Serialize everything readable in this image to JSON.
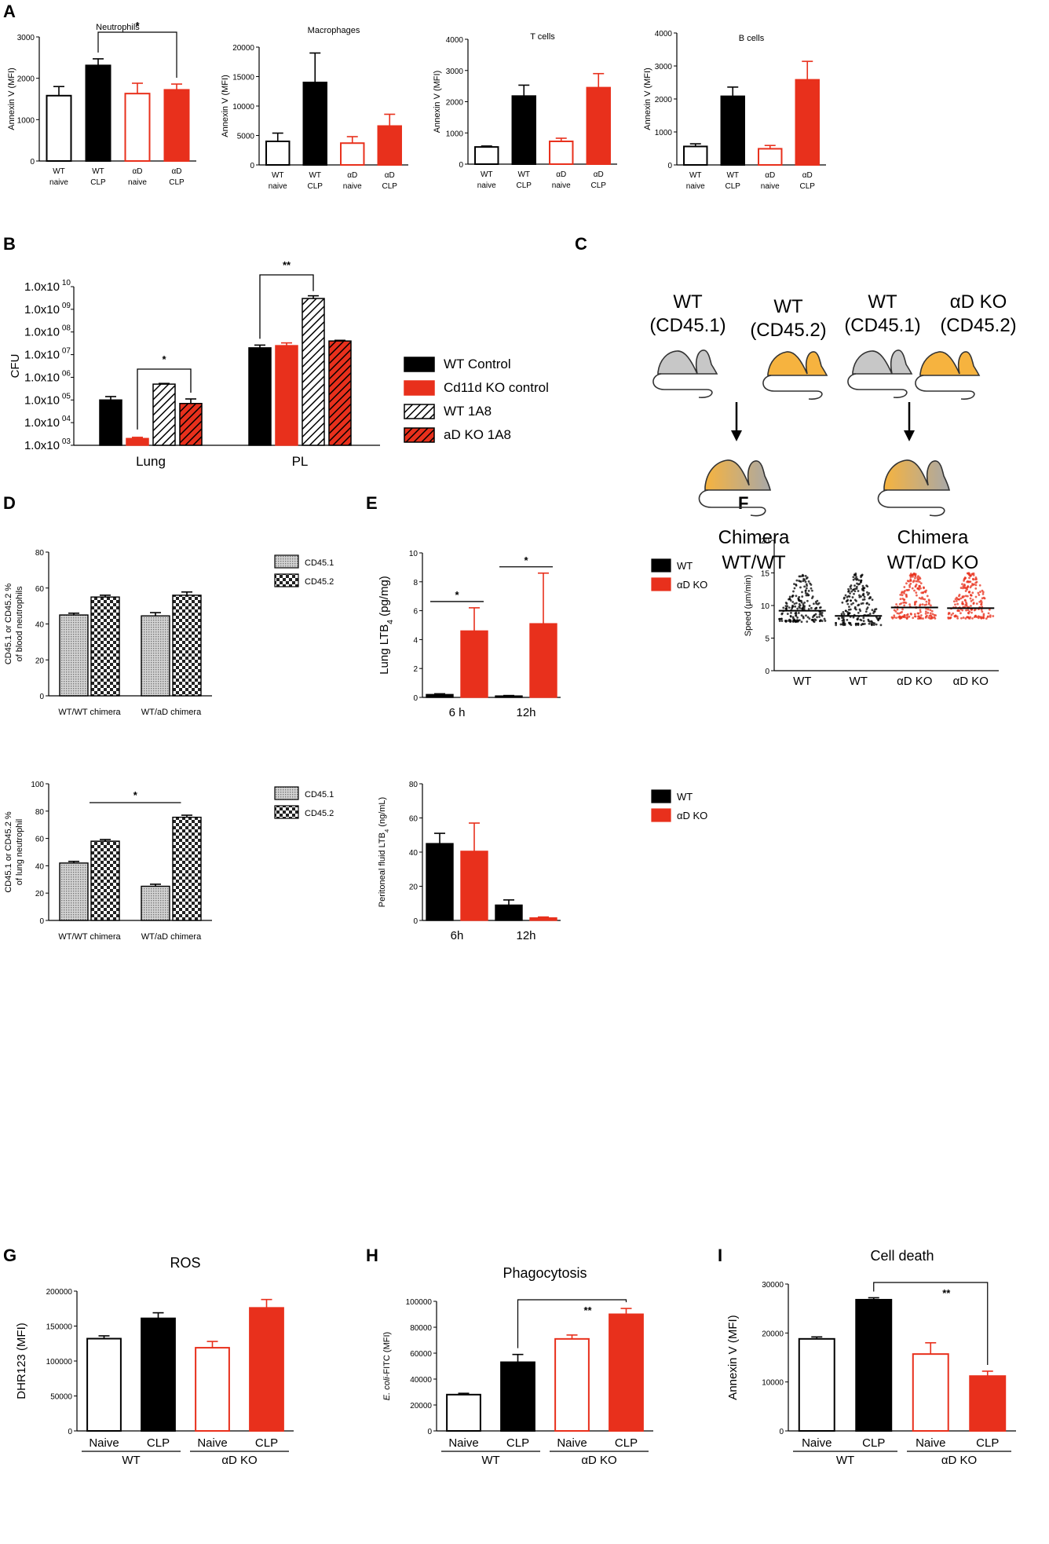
{
  "colors": {
    "black": "#000000",
    "red": "#e8301c",
    "gray": "#c7c7c7",
    "orange": "#f6b33f",
    "white": "#ffffff"
  },
  "chart_data": [
    {
      "id": "A1",
      "panel": "A",
      "type": "bar",
      "title": "Neutrophils",
      "ylabel": "Annexin V (MFI)",
      "ylim": [
        0,
        3000
      ],
      "yticks": [
        "0",
        "1000",
        "2000",
        "3000"
      ],
      "categories": [
        [
          "WT",
          "naive"
        ],
        [
          "WT",
          "CLP"
        ],
        [
          "αD",
          "naive"
        ],
        [
          "αD",
          "CLP"
        ]
      ],
      "values": [
        1580,
        2310,
        1630,
        1720
      ],
      "errors": [
        220,
        160,
        250,
        140
      ],
      "styles": [
        "open-black",
        "black",
        "open-red",
        "red"
      ],
      "annotations": [
        {
          "from": 1,
          "to": 3,
          "label": "*"
        }
      ]
    },
    {
      "id": "A2",
      "type": "bar",
      "title": "Macrophages",
      "ylabel": "Annexin V (MFI)",
      "ylim": [
        0,
        20000
      ],
      "yticks": [
        "0",
        "5000",
        "10000",
        "15000",
        "20000"
      ],
      "categories": [
        [
          "WT",
          "naive"
        ],
        [
          "WT",
          "CLP"
        ],
        [
          "αD",
          "naive"
        ],
        [
          "αD",
          "CLP"
        ]
      ],
      "values": [
        4000,
        14000,
        3700,
        6600
      ],
      "errors": [
        1400,
        5000,
        1100,
        2000
      ],
      "styles": [
        "open-black",
        "black",
        "open-red",
        "red"
      ]
    },
    {
      "id": "A3",
      "type": "bar",
      "title": "T cells",
      "ylabel": "Annexin V (MFI)",
      "ylim": [
        0,
        4000
      ],
      "yticks": [
        "0",
        "1000",
        "2000",
        "3000",
        "4000"
      ],
      "categories": [
        [
          "WT",
          "naive"
        ],
        [
          "WT",
          "CLP"
        ],
        [
          "αD",
          "naive"
        ],
        [
          "αD",
          "CLP"
        ]
      ],
      "values": [
        550,
        2180,
        730,
        2450
      ],
      "errors": [
        30,
        350,
        100,
        450
      ],
      "styles": [
        "open-black",
        "black",
        "open-red",
        "red"
      ]
    },
    {
      "id": "A4",
      "type": "bar",
      "title": "B cells",
      "ylabel": "Annexin V (MFI)",
      "ylim": [
        0,
        4000
      ],
      "yticks": [
        "0",
        "1000",
        "2000",
        "3000",
        "4000"
      ],
      "categories": [
        [
          "WT",
          "naive"
        ],
        [
          "WT",
          "CLP"
        ],
        [
          "αD",
          "naive"
        ],
        [
          "αD",
          "CLP"
        ]
      ],
      "values": [
        560,
        2080,
        490,
        2580
      ],
      "errors": [
        80,
        280,
        100,
        560
      ],
      "styles": [
        "open-black",
        "black",
        "open-red",
        "red"
      ]
    },
    {
      "id": "B",
      "panel": "B",
      "type": "bar",
      "scale": "log",
      "ylabel": "CFU",
      "ylim_exp": [
        3,
        10
      ],
      "yticks": [
        "1.0x10",
        "1.0x10",
        "1.0x10",
        "1.0x10",
        "1.0x10",
        "1.0x10",
        "1.0x10",
        "1.0x10"
      ],
      "ytick_exps": [
        "03",
        "04",
        "05",
        "06",
        "07",
        "08",
        "09",
        "10"
      ],
      "groups": [
        "Lung",
        "PL"
      ],
      "series": [
        {
          "name": "WT Control",
          "style": "black",
          "values": [
            100000,
            20000000
          ],
          "errors_log": [
            0.15,
            0.12
          ]
        },
        {
          "name": "Cd11d KO control",
          "style": "red",
          "values": [
            2000,
            25000000
          ],
          "errors_log": [
            0.05,
            0.12
          ]
        },
        {
          "name": "WT 1A8",
          "style": "hatch-white",
          "values": [
            500000,
            3000000000
          ],
          "errors_log": [
            0.03,
            0.12
          ]
        },
        {
          "name": "aD KO 1A8",
          "style": "hatch-red",
          "values": [
            70000,
            40000000
          ],
          "errors_log": [
            0.2,
            0.03
          ]
        }
      ],
      "annotations": [
        {
          "label": "*",
          "group": 0
        },
        {
          "label": "**",
          "group": 1
        }
      ]
    },
    {
      "id": "D1",
      "panel": "D",
      "type": "bar",
      "ylabel": "CD45.1 or CD45.2 %\nof blood neutrophils",
      "ylim": [
        0,
        80
      ],
      "yticks": [
        "0",
        "20",
        "40",
        "60",
        "80"
      ],
      "groups": [
        "WT/WT chimera",
        "WT/aD chimera"
      ],
      "series": [
        {
          "name": "CD45.1",
          "style": "dots",
          "values": [
            45,
            44.5
          ],
          "errors": [
            1,
            1.8
          ]
        },
        {
          "name": "CD45.2",
          "style": "checker",
          "values": [
            55,
            56
          ],
          "errors": [
            1,
            1.8
          ]
        }
      ]
    },
    {
      "id": "D2",
      "type": "bar",
      "ylabel": "CD45.1 or CD45.2 %\nof lung neutrophil",
      "ylim": [
        0,
        100
      ],
      "yticks": [
        "0",
        "20",
        "40",
        "60",
        "80",
        "100"
      ],
      "groups": [
        "WT/WT chimera",
        "WT/aD chimera"
      ],
      "series": [
        {
          "name": "CD45.1",
          "style": "dots",
          "values": [
            42,
            25
          ],
          "errors": [
            1.2,
            1.5
          ]
        },
        {
          "name": "CD45.2",
          "style": "checker",
          "values": [
            58,
            75.5
          ],
          "errors": [
            1.2,
            1.5
          ]
        }
      ],
      "annotations": [
        {
          "label": "*"
        }
      ]
    },
    {
      "id": "E1",
      "panel": "E",
      "type": "bar",
      "ylabel": "Lung LTB4 (pg/mg)",
      "ylabel_main": "Lung LTB",
      "ylabel_sub": "4",
      "ylabel_unit": " (pg/mg)",
      "ylim": [
        0,
        10
      ],
      "yticks": [
        "0",
        "2",
        "4",
        "6",
        "8",
        "10"
      ],
      "groups": [
        "6 h",
        "12h"
      ],
      "series": [
        {
          "name": "WT",
          "style": "black",
          "values": [
            0.2,
            0.1
          ],
          "errors": [
            0.05,
            0.03
          ]
        },
        {
          "name": "αD KO",
          "style": "red",
          "values": [
            4.6,
            5.1
          ],
          "errors": [
            1.6,
            3.5
          ]
        }
      ],
      "annotations": [
        {
          "label": "*",
          "group": 0
        },
        {
          "label": "*",
          "group": 1
        }
      ]
    },
    {
      "id": "E2",
      "type": "bar",
      "ylabel": "Peritoneal fluid LTB4 (ng/mL)",
      "ylabel_main": "Peritoneal fluid LTB",
      "ylabel_sub": "4",
      "ylabel_unit": " (ng/mL)",
      "ylim": [
        0,
        80
      ],
      "yticks": [
        "0",
        "20",
        "40",
        "60",
        "80"
      ],
      "groups": [
        "6h",
        "12h"
      ],
      "series": [
        {
          "name": "WT",
          "style": "black",
          "values": [
            45,
            9
          ],
          "errors": [
            6,
            3
          ]
        },
        {
          "name": "αD KO",
          "style": "red",
          "values": [
            40.5,
            1.5
          ],
          "errors": [
            16.5,
            0.5
          ]
        }
      ]
    },
    {
      "id": "F",
      "panel": "F",
      "type": "scatter",
      "ylabel": "Speed (µm/min)",
      "ylim": [
        0,
        20
      ],
      "yticks": [
        "0",
        "5",
        "10",
        "15",
        "20"
      ],
      "categories": [
        "WT",
        "WT",
        "αD KO",
        "αD KO"
      ],
      "medians": [
        9.2,
        8.4,
        9.7,
        9.6
      ],
      "ranges": [
        [
          7.5,
          15
        ],
        [
          7,
          15
        ],
        [
          8,
          15
        ],
        [
          8,
          15
        ]
      ],
      "styles": [
        "black",
        "black",
        "red",
        "red"
      ]
    },
    {
      "id": "G",
      "panel": "G",
      "type": "bar",
      "title": "ROS",
      "ylabel": "DHR123 (MFI)",
      "ylim": [
        0,
        200000
      ],
      "yticks": [
        "0",
        "50000",
        "100000",
        "150000",
        "200000"
      ],
      "categories": [
        "Naive",
        "CLP",
        "Naive",
        "CLP"
      ],
      "group_labels": [
        "WT",
        "αD KO"
      ],
      "values": [
        132000,
        161000,
        119000,
        176000
      ],
      "errors": [
        4000,
        8000,
        9000,
        12000
      ],
      "styles": [
        "open-black",
        "black",
        "open-red",
        "red"
      ]
    },
    {
      "id": "H",
      "panel": "H",
      "type": "bar",
      "title": "Phagocytosis",
      "ylabel": "E. coli-FITC (MFI)",
      "ylabel_italic": "E. coli",
      "ylabel_rest": "-FITC (MFI)",
      "ylim": [
        0,
        100000
      ],
      "yticks": [
        "0",
        "20000",
        "40000",
        "60000",
        "80000",
        "100000"
      ],
      "categories": [
        "Naive",
        "CLP",
        "Naive",
        "CLP"
      ],
      "group_labels": [
        "WT",
        "αD KO"
      ],
      "values": [
        28000,
        53000,
        71000,
        90000
      ],
      "errors": [
        1000,
        6000,
        3000,
        4500
      ],
      "styles": [
        "open-black",
        "black",
        "open-red",
        "red"
      ],
      "annotations": [
        {
          "from": 1,
          "to": 3,
          "label": "**"
        }
      ]
    },
    {
      "id": "I",
      "panel": "I",
      "type": "bar",
      "title": "Cell death",
      "ylabel": "Annexin V (MFI)",
      "ylim": [
        0,
        30000
      ],
      "yticks": [
        "0",
        "10000",
        "20000",
        "30000"
      ],
      "categories": [
        "Naive",
        "CLP",
        "Naive",
        "CLP"
      ],
      "group_labels": [
        "WT",
        "αD KO"
      ],
      "values": [
        18800,
        26800,
        15700,
        11200
      ],
      "errors": [
        400,
        400,
        2300,
        1000
      ],
      "styles": [
        "open-black",
        "black",
        "open-red",
        "red"
      ],
      "annotations": [
        {
          "from": 1,
          "to": 3,
          "label": "**"
        }
      ]
    }
  ],
  "diagram_c": {
    "label": "C",
    "donors": [
      {
        "title": "WT",
        "subtitle": "(CD45.1)"
      },
      {
        "title": "WT",
        "subtitle": "(CD45.2)"
      },
      {
        "title": "WT",
        "subtitle": "(CD45.1)"
      },
      {
        "title": "αD KO",
        "subtitle": "(CD45.2)"
      }
    ],
    "results": [
      {
        "title": "Chimera",
        "subtitle": "WT/WT"
      },
      {
        "title": "Chimera",
        "subtitle": "WT/αD KO"
      }
    ]
  },
  "panel_labels": [
    "A",
    "B",
    "C",
    "D",
    "E",
    "F",
    "G",
    "H",
    "I"
  ]
}
